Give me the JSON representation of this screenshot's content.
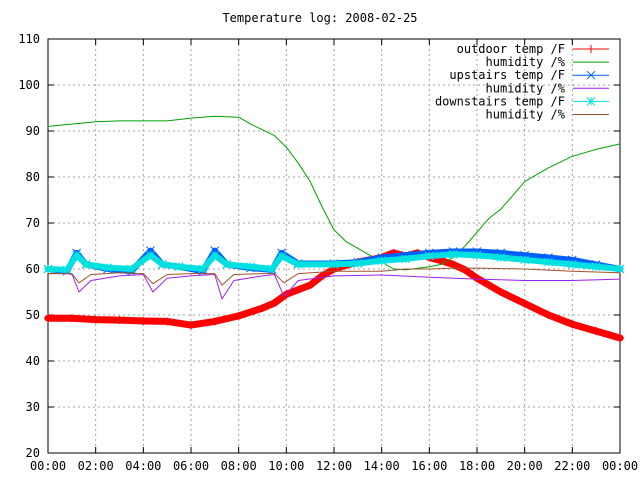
{
  "chart_data": {
    "type": "line",
    "title": "Temperature log: 2008-02-25",
    "xlabel": "",
    "ylabel": "",
    "x_ticks": [
      "00:00",
      "02:00",
      "04:00",
      "06:00",
      "08:00",
      "10:00",
      "12:00",
      "14:00",
      "16:00",
      "18:00",
      "20:00",
      "22:00",
      "00:00"
    ],
    "xlim": [
      0,
      24
    ],
    "ylim": [
      20,
      110
    ],
    "y_ticks": [
      20,
      30,
      40,
      50,
      60,
      70,
      80,
      90,
      100,
      110
    ],
    "grid": true,
    "legend_position": "top-right",
    "series": [
      {
        "name": "outdoor temp /F",
        "color": "#ff0000",
        "marker": "plus",
        "points": [
          [
            0,
            49.3
          ],
          [
            1,
            49.3
          ],
          [
            2,
            49
          ],
          [
            3,
            48.9
          ],
          [
            4,
            48.7
          ],
          [
            5,
            48.6
          ],
          [
            6,
            47.8
          ],
          [
            7,
            48.6
          ],
          [
            8,
            49.8
          ],
          [
            9,
            51.5
          ],
          [
            9.5,
            52.6
          ],
          [
            10,
            54.5
          ],
          [
            11,
            56.5
          ],
          [
            11.5,
            58.5
          ],
          [
            12,
            60
          ],
          [
            12.5,
            60.8
          ],
          [
            13,
            61.5
          ],
          [
            14,
            62.5
          ],
          [
            14.5,
            63.5
          ],
          [
            15,
            62.8
          ],
          [
            15.5,
            63.5
          ],
          [
            16,
            62.5
          ],
          [
            16.5,
            61.8
          ],
          [
            17,
            61
          ],
          [
            17.5,
            59.8
          ],
          [
            18,
            58
          ],
          [
            18.5,
            56.5
          ],
          [
            19,
            55
          ],
          [
            20,
            52.5
          ],
          [
            21,
            50
          ],
          [
            22,
            48
          ],
          [
            23,
            46.5
          ],
          [
            24,
            45
          ]
        ]
      },
      {
        "name": "humidity /%",
        "color": "#00a000",
        "marker": "none",
        "points": [
          [
            0,
            91
          ],
          [
            1,
            91.5
          ],
          [
            2,
            92
          ],
          [
            3,
            92.2
          ],
          [
            4,
            92.2
          ],
          [
            5,
            92.2
          ],
          [
            6,
            92.8
          ],
          [
            7,
            93.2
          ],
          [
            8,
            93
          ],
          [
            8.5,
            91.5
          ],
          [
            9.5,
            89
          ],
          [
            10,
            86.5
          ],
          [
            10.5,
            83
          ],
          [
            11,
            79
          ],
          [
            11.5,
            73.5
          ],
          [
            12,
            68.5
          ],
          [
            12.5,
            66
          ],
          [
            13,
            64.5
          ],
          [
            13.5,
            63
          ],
          [
            14,
            61.5
          ],
          [
            14.5,
            60
          ],
          [
            15,
            59.8
          ],
          [
            16,
            60.5
          ],
          [
            16.5,
            61
          ],
          [
            17,
            62.5
          ],
          [
            17.5,
            65
          ],
          [
            18,
            68
          ],
          [
            18.5,
            71
          ],
          [
            19,
            73
          ],
          [
            19.5,
            76
          ],
          [
            20,
            79
          ],
          [
            21,
            82
          ],
          [
            22,
            84.5
          ],
          [
            23,
            86
          ],
          [
            24,
            87.2
          ]
        ]
      },
      {
        "name": "upstairs temp /F",
        "color": "#0060ff",
        "marker": "cross",
        "points": [
          [
            0,
            60
          ],
          [
            0.8,
            59.5
          ],
          [
            1.2,
            63.5
          ],
          [
            1.6,
            61
          ],
          [
            2.5,
            60
          ],
          [
            3.5,
            59.5
          ],
          [
            4.3,
            64
          ],
          [
            4.8,
            61
          ],
          [
            5.5,
            60.5
          ],
          [
            6.5,
            59.5
          ],
          [
            7,
            64
          ],
          [
            7.5,
            61
          ],
          [
            8.5,
            60.2
          ],
          [
            9.4,
            59.8
          ],
          [
            9.8,
            63.5
          ],
          [
            10.5,
            61.2
          ],
          [
            12,
            61.2
          ],
          [
            13,
            61.5
          ],
          [
            14,
            62.5
          ],
          [
            15,
            63
          ],
          [
            16,
            63.5
          ],
          [
            17,
            63.8
          ],
          [
            18,
            63.8
          ],
          [
            19,
            63.5
          ],
          [
            20,
            63
          ],
          [
            21,
            62.5
          ],
          [
            22,
            62
          ],
          [
            23,
            61
          ],
          [
            24,
            60
          ]
        ]
      },
      {
        "name": "humidity /%",
        "color": "#a020f0",
        "marker": "none",
        "points": [
          [
            0,
            59
          ],
          [
            1,
            59
          ],
          [
            1.3,
            55
          ],
          [
            1.8,
            57.5
          ],
          [
            3,
            58.5
          ],
          [
            4,
            58.8
          ],
          [
            4.4,
            55
          ],
          [
            5,
            58
          ],
          [
            6,
            58.5
          ],
          [
            7,
            58.8
          ],
          [
            7.3,
            53.5
          ],
          [
            7.8,
            57.5
          ],
          [
            9,
            58.5
          ],
          [
            9.5,
            58.8
          ],
          [
            9.9,
            54
          ],
          [
            10.5,
            57.5
          ],
          [
            12,
            58.5
          ],
          [
            14,
            58.7
          ],
          [
            16,
            58.2
          ],
          [
            18,
            57.8
          ],
          [
            20,
            57.5
          ],
          [
            22,
            57.5
          ],
          [
            24,
            57.8
          ]
        ]
      },
      {
        "name": "downstairs temp /F",
        "color": "#00e0e0",
        "marker": "star",
        "points": [
          [
            0,
            60
          ],
          [
            0.8,
            59.8
          ],
          [
            1.2,
            63
          ],
          [
            1.6,
            61
          ],
          [
            2.5,
            60.3
          ],
          [
            3.5,
            60
          ],
          [
            4.3,
            63
          ],
          [
            4.8,
            61
          ],
          [
            5.5,
            60.5
          ],
          [
            6.5,
            60
          ],
          [
            7,
            63
          ],
          [
            7.5,
            61
          ],
          [
            8.5,
            60.5
          ],
          [
            9.4,
            60
          ],
          [
            9.8,
            62.8
          ],
          [
            10.5,
            61
          ],
          [
            12,
            61
          ],
          [
            13,
            61.2
          ],
          [
            14,
            61.8
          ],
          [
            15,
            62.2
          ],
          [
            16,
            62.8
          ],
          [
            17,
            63.2
          ],
          [
            18,
            63
          ],
          [
            19,
            62.5
          ],
          [
            20,
            62
          ],
          [
            21,
            61.5
          ],
          [
            22,
            61
          ],
          [
            23,
            60.5
          ],
          [
            24,
            60
          ]
        ]
      },
      {
        "name": "humidity /%",
        "color": "#a0522d",
        "marker": "none",
        "points": [
          [
            0,
            59
          ],
          [
            1,
            59
          ],
          [
            1.3,
            57
          ],
          [
            1.8,
            58.8
          ],
          [
            3,
            59.2
          ],
          [
            4,
            59
          ],
          [
            4.4,
            56.8
          ],
          [
            5,
            58.8
          ],
          [
            6,
            59
          ],
          [
            7,
            59
          ],
          [
            7.3,
            56.5
          ],
          [
            7.8,
            58.8
          ],
          [
            9,
            59
          ],
          [
            9.5,
            59
          ],
          [
            9.9,
            57
          ],
          [
            10.5,
            59
          ],
          [
            12,
            59.5
          ],
          [
            14,
            59.5
          ],
          [
            15,
            60
          ],
          [
            16,
            60
          ],
          [
            17,
            60.2
          ],
          [
            18,
            60.2
          ],
          [
            20,
            60
          ],
          [
            22,
            59.5
          ],
          [
            24,
            59.2
          ]
        ]
      }
    ]
  }
}
